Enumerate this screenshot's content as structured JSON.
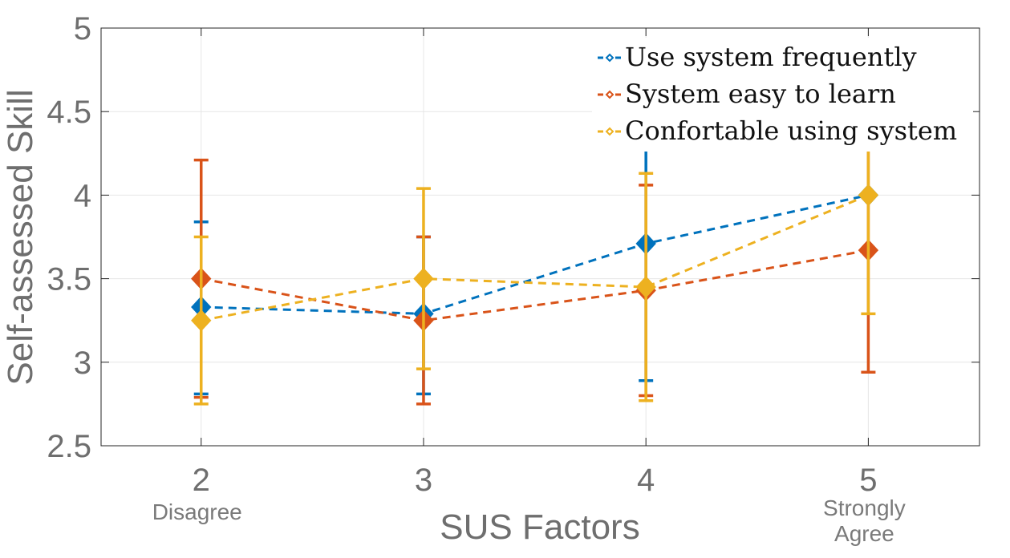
{
  "chart_data": {
    "type": "line",
    "title": "",
    "xlabel": "SUS Factors",
    "ylabel": "Self-assessed Skill",
    "x": [
      2,
      3,
      4,
      5
    ],
    "x_tick_labels": [
      "2",
      "3",
      "4",
      "5"
    ],
    "y_tick_labels": [
      "2.5",
      "3",
      "3.5",
      "4",
      "4.5",
      "5"
    ],
    "xlim": [
      1.55,
      5.5
    ],
    "ylim": [
      2.5,
      5
    ],
    "grid": true,
    "legend_position": "top-right",
    "annotations": [
      {
        "x": 2,
        "text_lines": [
          "Disagree"
        ]
      },
      {
        "x": 5,
        "text_lines": [
          "Strongly",
          "Agree"
        ]
      }
    ],
    "series": [
      {
        "name": "Use system frequently",
        "color": "#0072BD",
        "x_offset": 0,
        "values": [
          3.33,
          3.29,
          3.71,
          4.0
        ],
        "err_low": [
          2.81,
          2.81,
          2.89,
          4.0
        ],
        "err_high": [
          3.84,
          3.75,
          4.27,
          4.0
        ]
      },
      {
        "name": "System easy to learn",
        "color": "#D95319",
        "x_offset": 0,
        "values": [
          3.5,
          3.25,
          3.43,
          3.67
        ],
        "err_low": [
          2.79,
          2.75,
          2.8,
          2.94
        ],
        "err_high": [
          4.21,
          3.75,
          4.06,
          4.39
        ]
      },
      {
        "name": "Confortable using system",
        "color": "#EDB120",
        "x_offset": 0,
        "values": [
          3.25,
          3.5,
          3.45,
          4.0
        ],
        "err_low": [
          2.75,
          2.96,
          2.77,
          3.29
        ],
        "err_high": [
          3.75,
          4.04,
          4.13,
          4.71
        ]
      }
    ]
  }
}
